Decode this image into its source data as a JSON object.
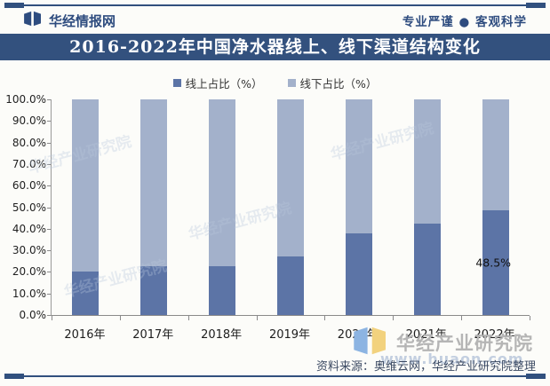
{
  "header": {
    "brand": "华经情报网",
    "slogan": "专业严谨 ● 客观科学"
  },
  "title": "2016-2022年中国净水器线上、线下渠道结构变化",
  "chart_data": {
    "type": "bar",
    "stacked": true,
    "title": "2016-2022年中国净水器线上、线下渠道结构变化",
    "categories": [
      "2016年",
      "2017年",
      "2018年",
      "2019年",
      "2020年",
      "2021年",
      "2022年"
    ],
    "series": [
      {
        "name": "线上占比（%）",
        "color": "#5c74a6",
        "values": [
          20.0,
          22.5,
          22.5,
          27.0,
          38.0,
          42.5,
          48.5
        ]
      },
      {
        "name": "线下占比（%）",
        "color": "#a3b1cb",
        "values": [
          80.0,
          77.5,
          77.5,
          73.0,
          62.0,
          57.5,
          51.5
        ]
      }
    ],
    "ylim": [
      0,
      100
    ],
    "yticks": [
      "0.0%",
      "10.0%",
      "20.0%",
      "30.0%",
      "40.0%",
      "50.0%",
      "60.0%",
      "70.0%",
      "80.0%",
      "90.0%",
      "100.0%"
    ],
    "grid": false,
    "legend_position": "top",
    "annotation": {
      "series_index": 0,
      "category_index": 6,
      "text": "48.5%"
    }
  },
  "watermark": {
    "brand": "华经产业研究院",
    "url": "www.huaon.com"
  },
  "footer": {
    "source": "资料来源：奥维云网，华经产业研究院整理"
  }
}
